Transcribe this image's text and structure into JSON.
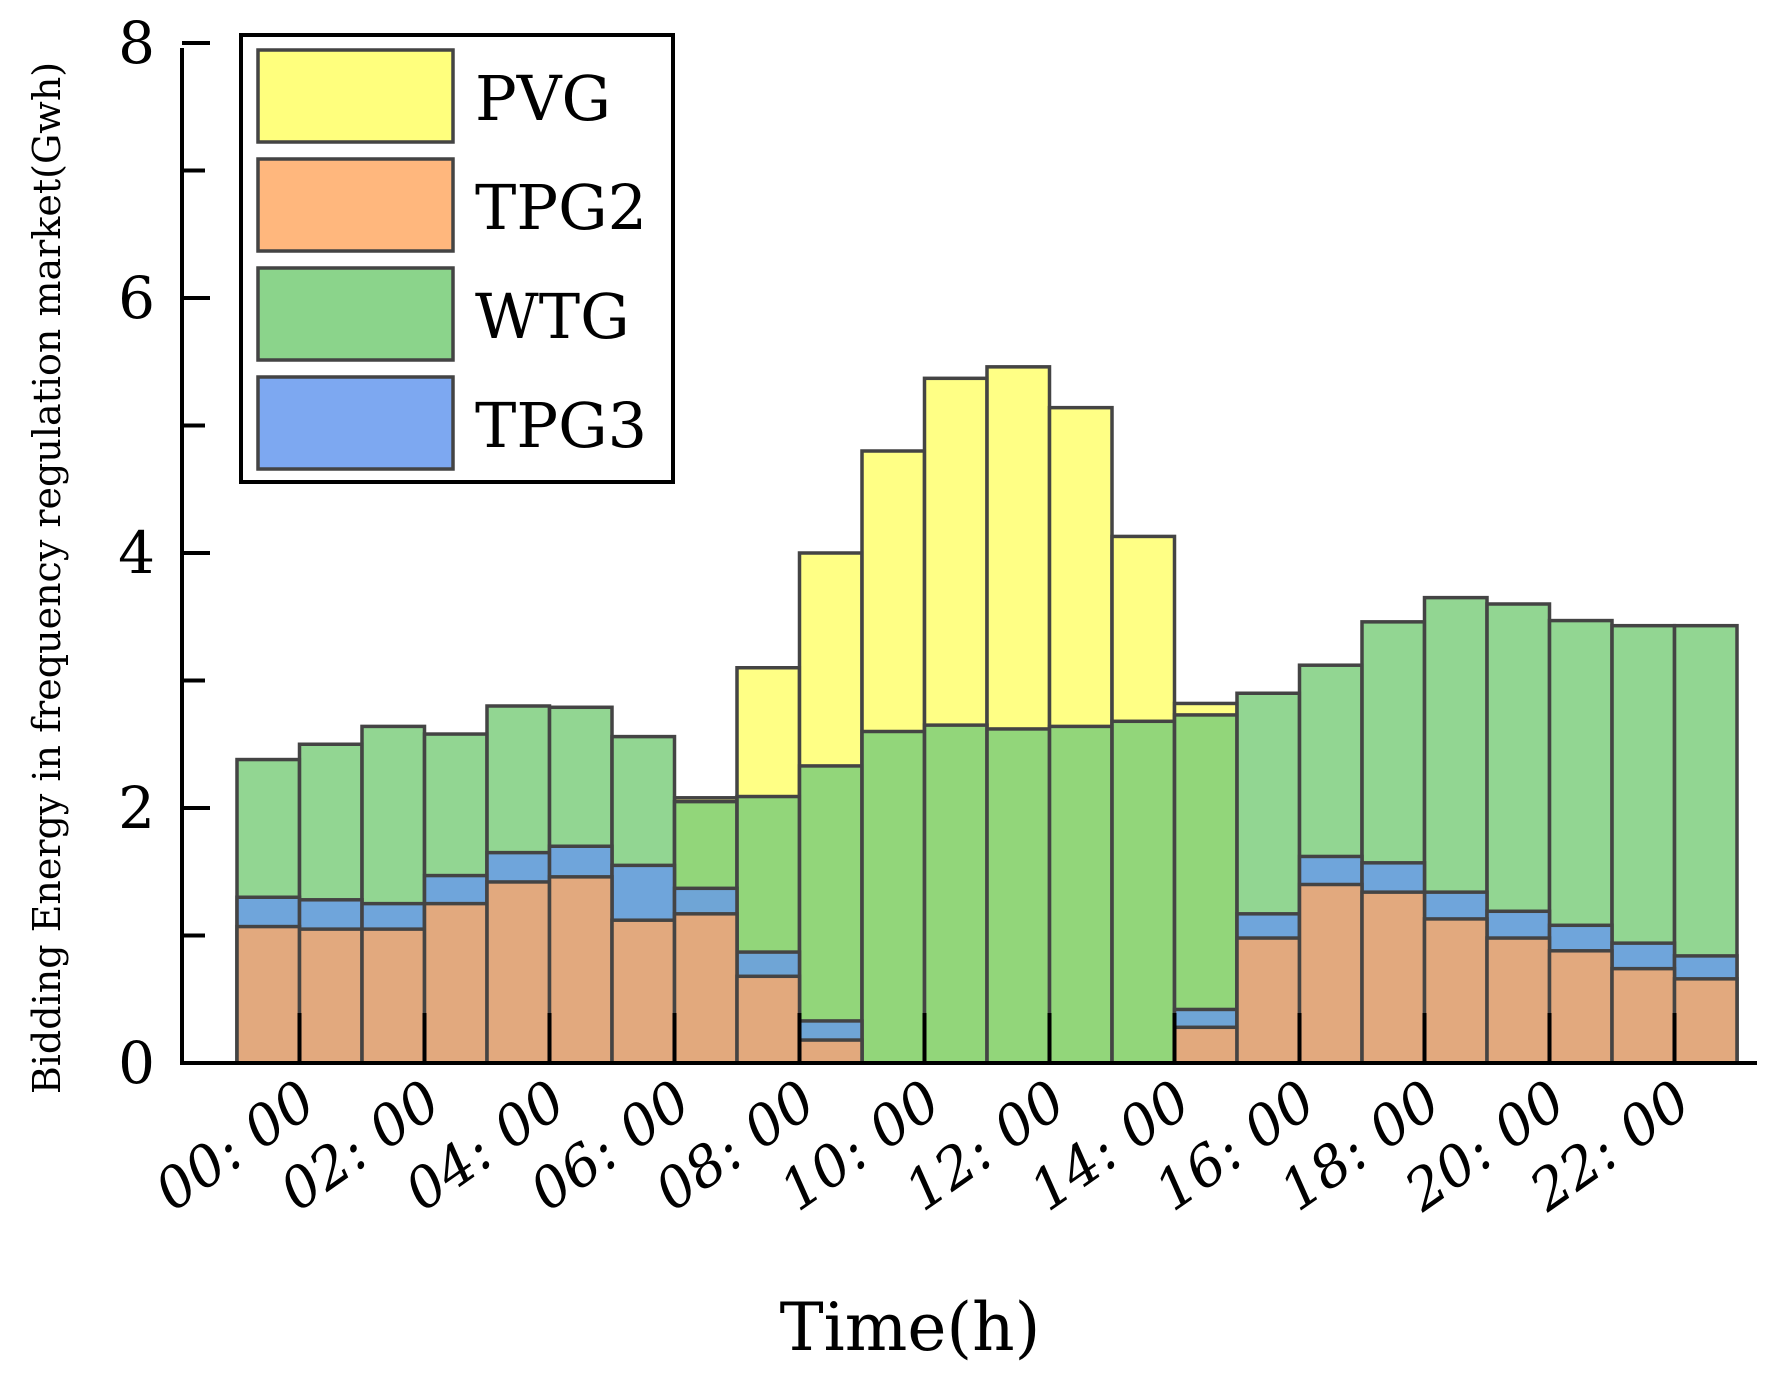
{
  "chart_data": {
    "type": "bar",
    "stacking": "overlapping",
    "title": "",
    "xlabel": "Time(h)",
    "ylabel": "Bidding Energy in frequency regulation market(Gwh)",
    "ylim": [
      0,
      8
    ],
    "yticks": [
      0,
      2,
      4,
      6,
      8
    ],
    "hours": [
      0,
      1,
      2,
      3,
      4,
      5,
      6,
      7,
      8,
      9,
      10,
      11,
      12,
      13,
      14,
      15,
      16,
      17,
      18,
      19,
      20,
      21,
      22,
      23
    ],
    "xtick_labels": [
      "00: 00",
      "02: 00",
      "04: 00",
      "06: 00",
      "08: 00",
      "10: 00",
      "12: 00",
      "14: 00",
      "16: 00",
      "18: 00",
      "20: 00",
      "22: 00"
    ],
    "series": [
      {
        "name": "PVG",
        "color": "#ffff66",
        "values": [
          0,
          0,
          0,
          0,
          0,
          0,
          0,
          2.08,
          3.1,
          4.0,
          4.8,
          5.37,
          5.46,
          5.14,
          4.13,
          2.82,
          0,
          0,
          0,
          0,
          0,
          0,
          0,
          0
        ]
      },
      {
        "name": "TPG2",
        "color": "#ffaa66",
        "values": [
          1.07,
          1.05,
          1.05,
          1.25,
          1.42,
          1.46,
          1.12,
          1.17,
          0.68,
          0.18,
          0,
          0,
          0,
          0,
          0,
          0.28,
          0.98,
          1.4,
          1.34,
          1.13,
          0.98,
          0.88,
          0.74,
          0.66
        ]
      },
      {
        "name": "WTG",
        "color": "#77cc77",
        "values": [
          2.38,
          2.5,
          2.64,
          2.58,
          2.8,
          2.79,
          2.56,
          2.05,
          2.09,
          2.33,
          2.6,
          2.65,
          2.62,
          2.64,
          2.68,
          2.73,
          2.9,
          3.12,
          3.46,
          3.65,
          3.6,
          3.47,
          3.43,
          3.43
        ]
      },
      {
        "name": "TPG3",
        "color": "#6699ee",
        "values": [
          1.3,
          1.28,
          1.25,
          1.47,
          1.65,
          1.7,
          1.55,
          1.37,
          0.87,
          0.33,
          0,
          0,
          0,
          0,
          0,
          0.42,
          1.17,
          1.62,
          1.57,
          1.34,
          1.19,
          1.08,
          0.94,
          0.84
        ]
      }
    ],
    "legend": {
      "position": "top-left",
      "entries": [
        "PVG",
        "TPG2",
        "WTG",
        "TPG3"
      ]
    }
  }
}
